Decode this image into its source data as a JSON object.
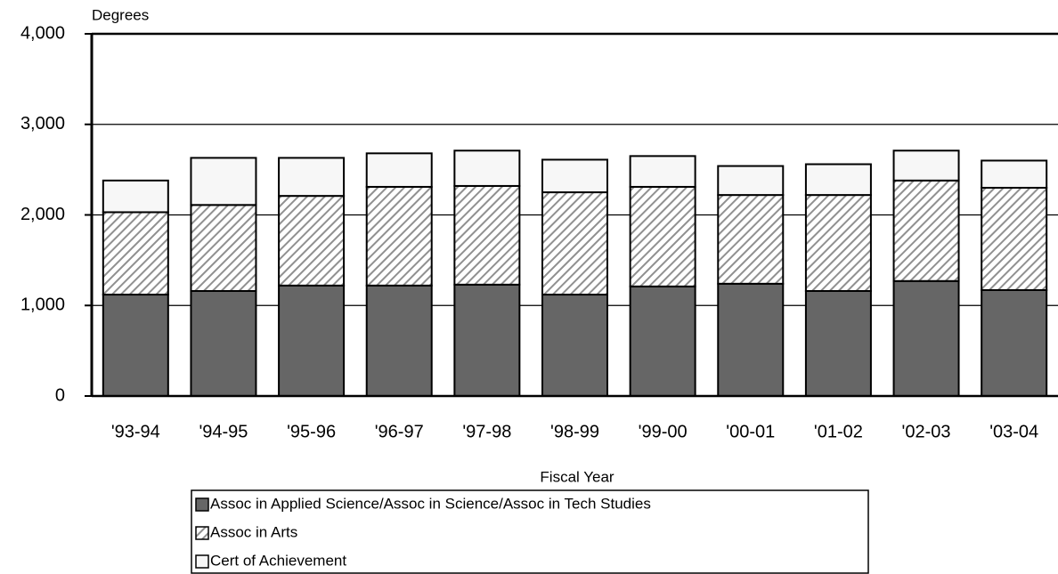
{
  "chart_data": {
    "type": "stacked-bar",
    "y_label": "Degrees",
    "x_label": "Fiscal Year",
    "categories": [
      "'93-94",
      "'94-95",
      "'95-96",
      "'96-97",
      "'97-98",
      "'98-99",
      "'99-00",
      "'00-01",
      "'01-02",
      "'02-03",
      "'03-04"
    ],
    "series": [
      {
        "name": "Assoc in Applied Science/Assoc in Science/Assoc in Tech Studies",
        "color": "#666666",
        "pattern": "solid",
        "values": [
          1120,
          1160,
          1220,
          1220,
          1230,
          1120,
          1210,
          1240,
          1160,
          1270,
          1170
        ]
      },
      {
        "name": "Assoc in Arts",
        "color": "#909090",
        "pattern": "hatch",
        "values": [
          910,
          950,
          990,
          1090,
          1090,
          1130,
          1100,
          980,
          1060,
          1110,
          1130
        ]
      },
      {
        "name": "Cert of Achievement",
        "color": "#f7f7f7",
        "pattern": "solid",
        "values": [
          350,
          520,
          420,
          370,
          390,
          360,
          340,
          320,
          340,
          330,
          300
        ]
      }
    ],
    "ylim": [
      0,
      4000
    ],
    "yticks": [
      {
        "value": 0,
        "label": "0"
      },
      {
        "value": 1000,
        "label": "1,000"
      },
      {
        "value": 2000,
        "label": "2,000"
      },
      {
        "value": 3000,
        "label": "3,000"
      },
      {
        "value": 4000,
        "label": "4,000"
      }
    ],
    "grid": true,
    "legend": "bottom"
  }
}
